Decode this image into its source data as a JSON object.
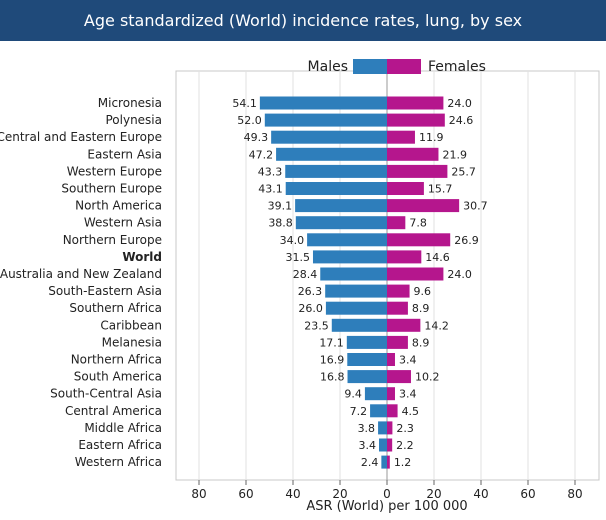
{
  "chart_data": {
    "type": "bar",
    "title": "Age standardized (World) incidence rates, lung, by sex",
    "xlabel": "ASR (World) per 100 000",
    "xlim": [
      -90,
      90
    ],
    "xticks": [
      "80",
      "60",
      "40",
      "20",
      "0",
      "20",
      "40",
      "60",
      "80"
    ],
    "xtick_values": [
      -80,
      -60,
      -40,
      -20,
      0,
      20,
      40,
      60,
      80
    ],
    "grid": true,
    "legend_position": "top-center",
    "categories": [
      "Micronesia",
      "Polynesia",
      "Central and Eastern Europe",
      "Eastern Asia",
      "Western Europe",
      "Southern Europe",
      "North America",
      "Western Asia",
      "Northern Europe",
      "World",
      "Australia and New Zealand",
      "South-Eastern Asia",
      "Southern Africa",
      "Caribbean",
      "Melanesia",
      "Northern Africa",
      "South America",
      "South-Central Asia",
      "Central America",
      "Middle Africa",
      "Eastern Africa",
      "Western Africa"
    ],
    "highlight_category": "World",
    "series": [
      {
        "name": "Males",
        "color": "#2e7ebb",
        "values": [
          54.1,
          52.0,
          49.3,
          47.2,
          43.3,
          43.1,
          39.1,
          38.8,
          34.0,
          31.5,
          28.4,
          26.3,
          26.0,
          23.5,
          17.1,
          16.9,
          16.8,
          9.4,
          7.2,
          3.8,
          3.4,
          2.4
        ]
      },
      {
        "name": "Females",
        "color": "#b5168d",
        "values": [
          24.0,
          24.6,
          11.9,
          21.9,
          25.7,
          15.7,
          30.7,
          7.8,
          26.9,
          14.6,
          24.0,
          9.6,
          8.9,
          14.2,
          8.9,
          3.4,
          10.2,
          3.4,
          4.5,
          2.3,
          2.2,
          1.2
        ]
      }
    ]
  }
}
